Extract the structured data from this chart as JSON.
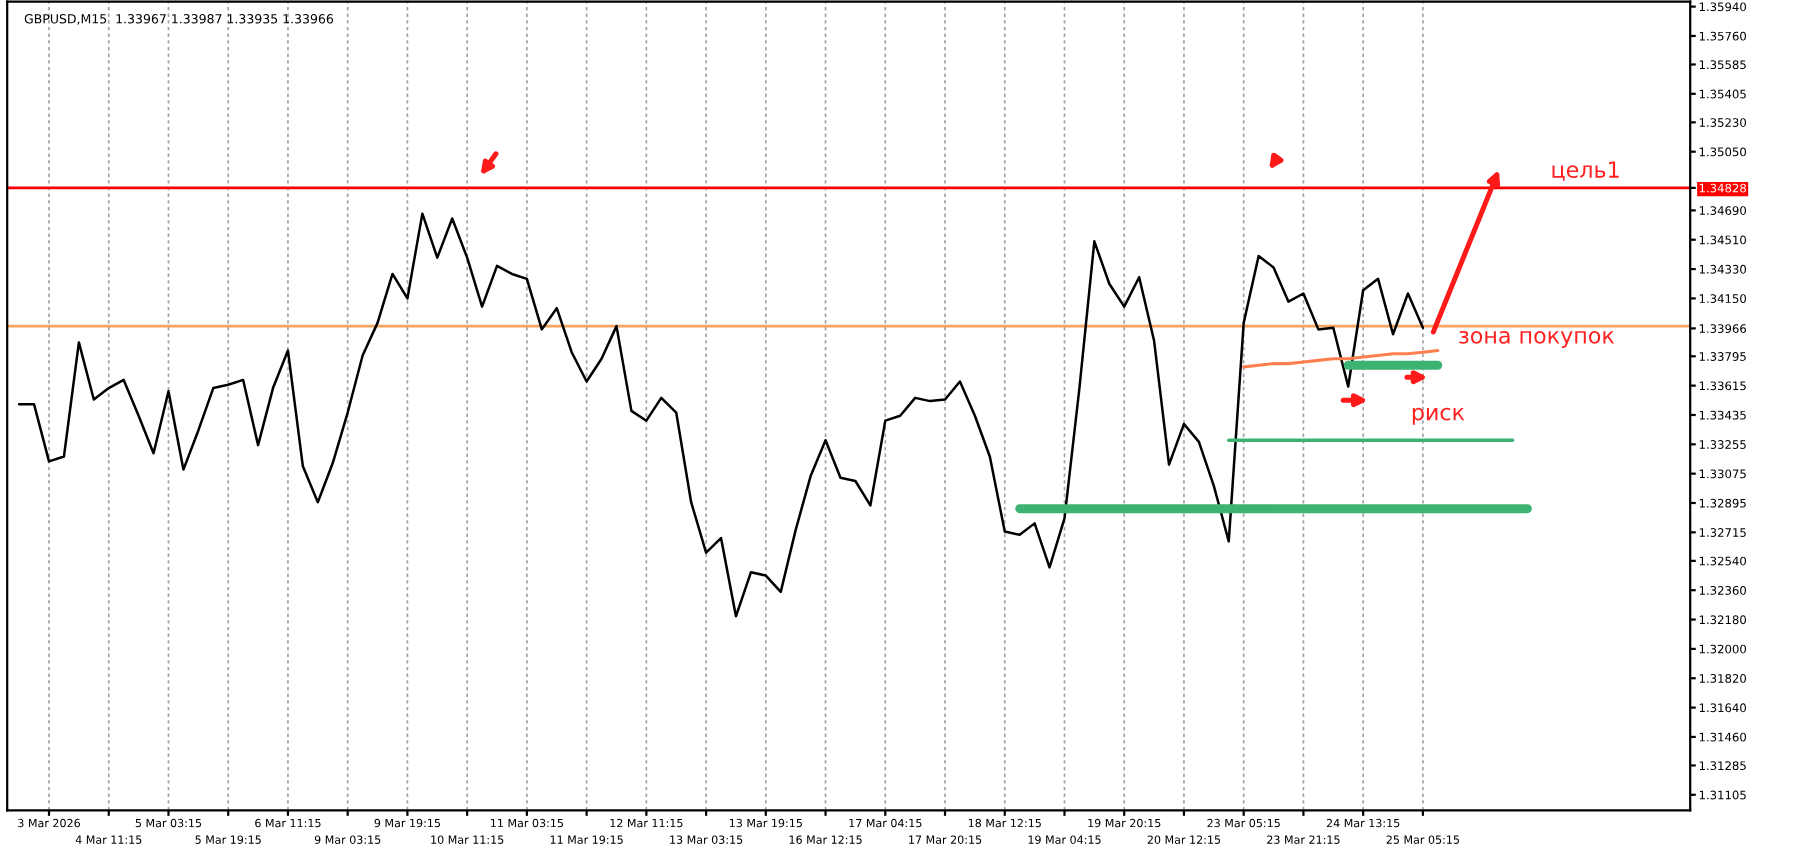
{
  "chart_data": {
    "type": "line",
    "title": "GBPUSD,M15  1.33967 1.33987 1.33935 1.33966",
    "categories": [
      null,
      null,
      "3 Mar 2026",
      null,
      null,
      null,
      "4 Mar 11:15",
      null,
      null,
      null,
      "5 Mar 03:15",
      null,
      null,
      null,
      "5 Mar 19:15",
      null,
      null,
      null,
      "6 Mar 11:15",
      null,
      null,
      null,
      "9 Mar 03:15",
      null,
      null,
      null,
      "9 Mar 19:15",
      null,
      null,
      null,
      "10 Mar 11:15",
      null,
      null,
      null,
      "11 Mar 03:15",
      null,
      null,
      null,
      "11 Mar 19:15",
      null,
      null,
      null,
      "12 Mar 11:15",
      null,
      null,
      null,
      "13 Mar 03:15",
      null,
      null,
      null,
      "13 Mar 19:15",
      null,
      null,
      null,
      "16 Mar 12:15",
      null,
      null,
      null,
      "17 Mar 04:15",
      null,
      null,
      null,
      "17 Mar 20:15",
      null,
      null,
      null,
      "18 Mar 12:15",
      null,
      null,
      null,
      "19 Mar 04:15",
      null,
      null,
      null,
      "19 Mar 20:15",
      null,
      null,
      null,
      "20 Mar 12:15",
      null,
      null,
      null,
      "23 Mar 05:15",
      null,
      null,
      null,
      "23 Mar 21:15",
      null,
      null,
      null,
      "24 Mar 13:15",
      null,
      null,
      null,
      "25 Mar 05:15",
      null,
      null,
      null,
      null,
      null,
      null,
      null,
      null,
      null,
      null,
      null,
      null,
      null,
      null,
      null,
      null,
      null
    ],
    "series": [
      {
        "color": "#000000",
        "values": [
          1.335,
          1.335,
          1.3315,
          1.3318,
          1.3388,
          1.3353,
          1.336,
          1.3365,
          1.3343,
          1.332,
          1.3358,
          1.331,
          1.3334,
          1.336,
          1.3362,
          1.3365,
          1.3325,
          1.336,
          1.3383,
          1.3312,
          1.329,
          1.3314,
          1.3345,
          1.338,
          1.34,
          1.343,
          1.3415,
          1.3467,
          1.344,
          1.3464,
          1.344,
          1.341,
          1.3435,
          1.343,
          1.3427,
          1.3396,
          1.3409,
          1.3382,
          1.3364,
          1.3378,
          1.3398,
          1.3346,
          1.334,
          1.3354,
          1.3345,
          1.329,
          1.3259,
          1.3268,
          1.322,
          1.3247,
          1.3245,
          1.3235,
          1.3273,
          1.3306,
          1.3328,
          1.3305,
          1.3303,
          1.3288,
          1.334,
          1.3343,
          1.3354,
          1.3352,
          1.3353,
          1.3364,
          1.3343,
          1.3318,
          1.3272,
          1.327,
          1.3277,
          1.325,
          1.328,
          1.336,
          1.345,
          1.3424,
          1.341,
          1.3428,
          1.3389,
          1.3313,
          1.3338,
          1.3327,
          1.33,
          1.3266,
          1.34,
          1.3441,
          1.3434,
          1.3413,
          1.3418,
          1.3396,
          1.3397,
          1.3361,
          1.342,
          1.3427,
          1.3393,
          1.3418,
          1.3397,
          null,
          null,
          null,
          null,
          null,
          null,
          null,
          null,
          null,
          null,
          null,
          null,
          null,
          null,
          null,
          null,
          null
        ]
      },
      {
        "type": "line",
        "color": "#3cb371",
        "values": [
          null,
          null,
          null,
          null,
          null,
          null,
          null,
          null,
          null,
          null,
          null,
          null,
          null,
          null,
          null,
          null,
          null,
          null,
          null,
          null,
          null,
          null,
          null,
          null,
          null,
          null,
          null,
          null,
          null,
          null,
          null,
          null,
          null,
          null,
          null,
          null,
          null,
          null,
          null,
          null,
          null,
          null,
          null,
          null,
          null,
          null,
          null,
          null,
          null,
          null,
          null,
          null,
          null,
          null,
          null,
          null,
          null,
          null,
          null,
          null,
          null,
          null,
          null,
          null,
          null,
          null,
          null,
          1.3286,
          1.3286,
          1.3286,
          1.3286,
          1.3286,
          1.3286,
          1.3286,
          1.3286,
          1.3286,
          1.3286,
          1.3286,
          1.3286,
          1.3286,
          1.3286,
          1.3286,
          1.3286,
          1.3286,
          1.3286,
          1.3286,
          1.3286,
          1.3286,
          1.3286,
          1.3286,
          1.3286,
          1.3286,
          1.3286,
          1.3286,
          1.3286,
          1.3286,
          1.3286,
          1.3286,
          1.3286,
          1.3286,
          1.3286,
          1.3286,
          null,
          null,
          null,
          null,
          null,
          null,
          null,
          null,
          null,
          null
        ]
      },
      {
        "type": "line",
        "color": "#3cb371",
        "values": [
          null,
          null,
          null,
          null,
          null,
          null,
          null,
          null,
          null,
          null,
          null,
          null,
          null,
          null,
          null,
          null,
          null,
          null,
          null,
          null,
          null,
          null,
          null,
          null,
          null,
          null,
          null,
          null,
          null,
          null,
          null,
          null,
          null,
          null,
          null,
          null,
          null,
          null,
          null,
          null,
          null,
          null,
          null,
          null,
          null,
          null,
          null,
          null,
          null,
          null,
          null,
          null,
          null,
          null,
          null,
          null,
          null,
          null,
          null,
          null,
          null,
          null,
          null,
          null,
          null,
          null,
          null,
          null,
          null,
          null,
          null,
          null,
          null,
          null,
          null,
          null,
          null,
          null,
          null,
          null,
          null,
          1.3328,
          1.3328,
          1.3328,
          1.3328,
          1.3328,
          1.3328,
          1.3328,
          1.3328,
          1.3328,
          1.3328,
          1.3328,
          1.3328,
          1.3328,
          1.3328,
          1.3328,
          1.3328,
          1.3328,
          1.3328,
          1.3328,
          1.3328,
          null,
          null,
          null,
          null,
          null,
          null,
          null,
          null,
          null,
          null,
          null
        ]
      },
      {
        "type": "line",
        "color": "#3cb371",
        "values": [
          null,
          null,
          null,
          null,
          null,
          null,
          null,
          null,
          null,
          null,
          null,
          null,
          null,
          null,
          null,
          null,
          null,
          null,
          null,
          null,
          null,
          null,
          null,
          null,
          null,
          null,
          null,
          null,
          null,
          null,
          null,
          null,
          null,
          null,
          null,
          null,
          null,
          null,
          null,
          null,
          null,
          null,
          null,
          null,
          null,
          null,
          null,
          null,
          null,
          null,
          null,
          null,
          null,
          null,
          null,
          null,
          null,
          null,
          null,
          null,
          null,
          null,
          null,
          null,
          null,
          null,
          null,
          null,
          null,
          null,
          null,
          null,
          null,
          null,
          null,
          null,
          null,
          null,
          null,
          null,
          null,
          null,
          null,
          null,
          null,
          null,
          null,
          null,
          null,
          1.3374,
          1.3374,
          1.3374,
          1.3374,
          1.3374,
          1.3374,
          1.3374,
          null,
          null,
          null,
          null,
          null,
          null,
          null,
          null,
          null,
          null,
          null,
          null,
          null,
          null,
          null,
          null
        ]
      },
      {
        "type": "line",
        "color": "#ff7f50",
        "values": [
          null,
          null,
          null,
          null,
          null,
          null,
          null,
          null,
          null,
          null,
          null,
          null,
          null,
          null,
          null,
          null,
          null,
          null,
          null,
          null,
          null,
          null,
          null,
          null,
          null,
          null,
          null,
          null,
          null,
          null,
          null,
          null,
          null,
          null,
          null,
          null,
          null,
          null,
          null,
          null,
          null,
          null,
          null,
          null,
          null,
          null,
          null,
          null,
          null,
          null,
          null,
          null,
          null,
          null,
          null,
          null,
          null,
          null,
          null,
          null,
          null,
          null,
          null,
          null,
          null,
          null,
          null,
          null,
          null,
          null,
          null,
          null,
          null,
          null,
          null,
          null,
          null,
          null,
          null,
          null,
          null,
          null,
          1.3373,
          1.3374,
          1.3375,
          1.3375,
          1.3376,
          1.3377,
          1.3378,
          1.3378,
          1.3379,
          1.338,
          1.3381,
          1.3381,
          1.3382,
          1.3383,
          null,
          null,
          null,
          null,
          null,
          null,
          null,
          null,
          null,
          null,
          null,
          null,
          null,
          null,
          null,
          null
        ]
      }
    ],
    "ref_lines": [
      {
        "axis": "y",
        "value": 1.34828,
        "color": "#ff0000"
      },
      {
        "axis": "y",
        "value": 1.3398,
        "color": "#f4a460"
      }
    ],
    "annotations": [
      "цель1",
      "зона покупок",
      "риск"
    ],
    "ylim": [
      1.3101,
      1.3597
    ],
    "yticks": [
      {
        "value": 1.3594,
        "label": "1.35940"
      },
      {
        "value": 1.3576,
        "label": "1.35760"
      },
      {
        "value": 1.35585,
        "label": "1.35585"
      },
      {
        "value": 1.35405,
        "label": "1.35405"
      },
      {
        "value": 1.3523,
        "label": "1.35230"
      },
      {
        "value": 1.3505,
        "label": "1.35050"
      },
      {
        "value": 1.34828,
        "label": "1.34828"
      },
      {
        "value": 1.3469,
        "label": "1.34690"
      },
      {
        "value": 1.3451,
        "label": "1.34510"
      },
      {
        "value": 1.3433,
        "label": "1.34330"
      },
      {
        "value": 1.3415,
        "label": "1.34150"
      },
      {
        "value": 1.33966,
        "label": "1.33966"
      },
      {
        "value": 1.33795,
        "label": "1.33795"
      },
      {
        "value": 1.33615,
        "label": "1.33615"
      },
      {
        "value": 1.33435,
        "label": "1.33435"
      },
      {
        "value": 1.33255,
        "label": "1.33255"
      },
      {
        "value": 1.33075,
        "label": "1.33075"
      },
      {
        "value": 1.32895,
        "label": "1.32895"
      },
      {
        "value": 1.32715,
        "label": "1.32715"
      },
      {
        "value": 1.3254,
        "label": "1.32540"
      },
      {
        "value": 1.3236,
        "label": "1.32360"
      },
      {
        "value": 1.3218,
        "label": "1.32180"
      },
      {
        "value": 1.32,
        "label": "1.32000"
      },
      {
        "value": 1.3182,
        "label": "1.31820"
      },
      {
        "value": 1.3164,
        "label": "1.31640"
      },
      {
        "value": 1.3146,
        "label": "1.31460"
      },
      {
        "value": 1.31285,
        "label": "1.31285"
      },
      {
        "value": 1.31105,
        "label": "1.31105"
      }
    ],
    "grid": "x",
    "legend": false
  }
}
